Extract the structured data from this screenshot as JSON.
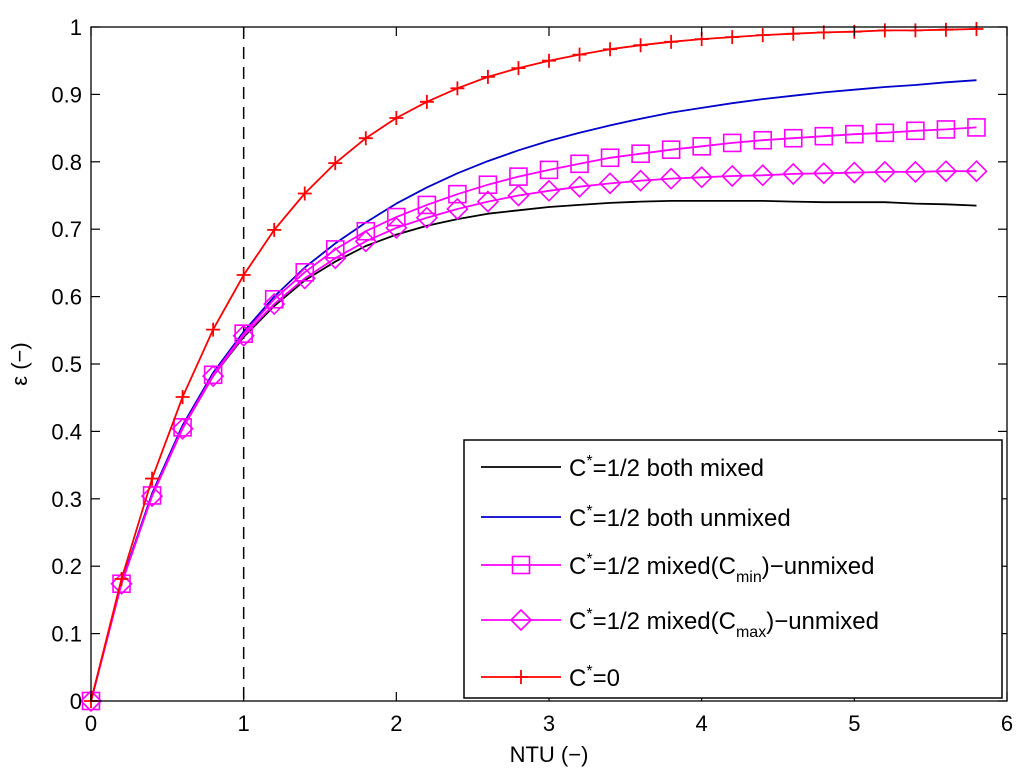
{
  "chart_data": {
    "type": "line",
    "xlabel": "NTU (−)",
    "ylabel": "ε (−)",
    "xlim": [
      0,
      6
    ],
    "ylim": [
      0,
      1
    ],
    "xticks": [
      "0",
      "1",
      "2",
      "3",
      "4",
      "5",
      "6"
    ],
    "yticks": [
      "0",
      "0.1",
      "0.2",
      "0.3",
      "0.4",
      "0.5",
      "0.6",
      "0.7",
      "0.8",
      "0.9",
      "1"
    ],
    "grid": false,
    "legend_position": "bottom-right",
    "vertical_reference_line": {
      "x": 1,
      "style": "dashed",
      "color": "#000000"
    },
    "series": [
      {
        "name": "C*=1/2 both mixed",
        "legend": {
          "pre": "C",
          "sup": "*",
          "post": "=1/2 both mixed"
        },
        "color": "#000000",
        "marker": "none",
        "x": [
          0,
          0.2,
          0.4,
          0.6,
          0.8,
          1.0,
          1.2,
          1.4,
          1.6,
          1.8,
          2.0,
          2.2,
          2.4,
          2.6,
          2.8,
          3.0,
          3.2,
          3.4,
          3.6,
          3.8,
          4.0,
          4.2,
          4.4,
          4.6,
          4.8,
          5.0,
          5.2,
          5.4,
          5.6,
          5.8
        ],
        "values": [
          0,
          0.175,
          0.305,
          0.405,
          0.482,
          0.54,
          0.586,
          0.624,
          0.652,
          0.675,
          0.692,
          0.705,
          0.715,
          0.723,
          0.728,
          0.733,
          0.736,
          0.739,
          0.741,
          0.742,
          0.742,
          0.742,
          0.742,
          0.741,
          0.74,
          0.74,
          0.74,
          0.738,
          0.737,
          0.735
        ]
      },
      {
        "name": "C*=1/2 both unmixed",
        "legend": {
          "pre": "C",
          "sup": "*",
          "post": "=1/2 both unmixed"
        },
        "color": "#0000cc",
        "marker": "none",
        "x": [
          0,
          0.2,
          0.4,
          0.6,
          0.8,
          1.0,
          1.2,
          1.4,
          1.6,
          1.8,
          2.0,
          2.2,
          2.4,
          2.6,
          2.8,
          3.0,
          3.2,
          3.4,
          3.6,
          3.8,
          4.0,
          4.2,
          4.4,
          4.6,
          4.8,
          5.0,
          5.2,
          5.4,
          5.6,
          5.8
        ],
        "values": [
          0,
          0.176,
          0.308,
          0.409,
          0.487,
          0.548,
          0.6,
          0.643,
          0.679,
          0.71,
          0.738,
          0.762,
          0.783,
          0.801,
          0.817,
          0.831,
          0.843,
          0.854,
          0.864,
          0.873,
          0.88,
          0.887,
          0.893,
          0.898,
          0.903,
          0.907,
          0.911,
          0.914,
          0.918,
          0.921
        ]
      },
      {
        "name": "C*=1/2 mixed(Cmin)-unmixed",
        "legend": {
          "pre": "C",
          "sup": "*",
          "post": "=1/2 mixed(C",
          "sub": "min",
          "post2": ")−unmixed"
        },
        "color": "#ff00ff",
        "marker": "square",
        "x": [
          0,
          0.2,
          0.4,
          0.6,
          0.8,
          1.0,
          1.2,
          1.4,
          1.6,
          1.8,
          2.0,
          2.2,
          2.4,
          2.6,
          2.8,
          3.0,
          3.2,
          3.4,
          3.6,
          3.8,
          4.0,
          4.2,
          4.4,
          4.6,
          4.8,
          5.0,
          5.2,
          5.4,
          5.6,
          5.8
        ],
        "values": [
          0,
          0.174,
          0.305,
          0.406,
          0.484,
          0.545,
          0.596,
          0.636,
          0.67,
          0.697,
          0.718,
          0.736,
          0.752,
          0.766,
          0.778,
          0.788,
          0.797,
          0.806,
          0.812,
          0.818,
          0.823,
          0.828,
          0.832,
          0.835,
          0.838,
          0.841,
          0.843,
          0.846,
          0.848,
          0.851
        ]
      },
      {
        "name": "C*=1/2 mixed(Cmax)-unmixed",
        "legend": {
          "pre": "C",
          "sup": "*",
          "post": "=1/2 mixed(C",
          "sub": "max",
          "post2": ")−unmixed"
        },
        "color": "#ff00ff",
        "marker": "diamond",
        "x": [
          0,
          0.2,
          0.4,
          0.6,
          0.8,
          1.0,
          1.2,
          1.4,
          1.6,
          1.8,
          2.0,
          2.2,
          2.4,
          2.6,
          2.8,
          3.0,
          3.2,
          3.4,
          3.6,
          3.8,
          4.0,
          4.2,
          4.4,
          4.6,
          4.8,
          5.0,
          5.2,
          5.4,
          5.6,
          5.8
        ],
        "values": [
          0,
          0.174,
          0.304,
          0.404,
          0.482,
          0.542,
          0.589,
          0.627,
          0.657,
          0.682,
          0.702,
          0.717,
          0.73,
          0.741,
          0.75,
          0.757,
          0.763,
          0.768,
          0.772,
          0.775,
          0.777,
          0.779,
          0.78,
          0.782,
          0.783,
          0.784,
          0.785,
          0.785,
          0.786,
          0.786
        ]
      },
      {
        "name": "C*=0",
        "legend": {
          "pre": "C",
          "sup": "*",
          "post": "=0"
        },
        "color": "#ff0000",
        "marker": "plus",
        "x": [
          0,
          0.2,
          0.4,
          0.6,
          0.8,
          1.0,
          1.2,
          1.4,
          1.6,
          1.8,
          2.0,
          2.2,
          2.4,
          2.6,
          2.8,
          3.0,
          3.2,
          3.4,
          3.6,
          3.8,
          4.0,
          4.2,
          4.4,
          4.6,
          4.8,
          5.0,
          5.2,
          5.4,
          5.6,
          5.8
        ],
        "values": [
          0,
          0.181,
          0.33,
          0.451,
          0.551,
          0.632,
          0.699,
          0.753,
          0.798,
          0.835,
          0.865,
          0.889,
          0.909,
          0.926,
          0.939,
          0.95,
          0.959,
          0.967,
          0.973,
          0.978,
          0.982,
          0.985,
          0.988,
          0.99,
          0.992,
          0.993,
          0.995,
          0.995,
          0.996,
          0.997
        ]
      }
    ]
  }
}
